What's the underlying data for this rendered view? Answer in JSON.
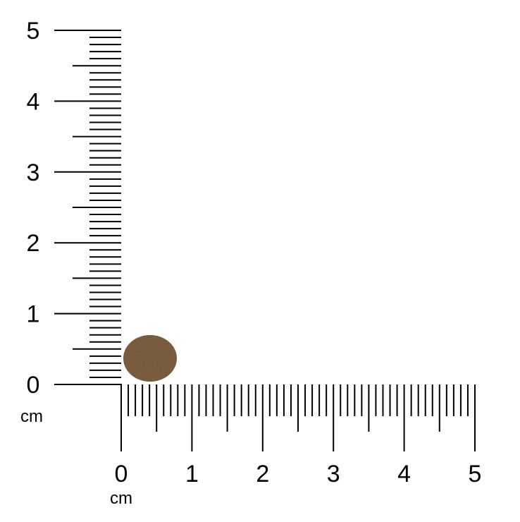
{
  "rulers": {
    "unit": "cm",
    "vertical": {
      "labels": [
        "0",
        "1",
        "2",
        "3",
        "4",
        "5"
      ],
      "unit_label": "cm",
      "range_cm": [
        0,
        5
      ],
      "minor_step_mm": 1
    },
    "horizontal": {
      "labels": [
        "0",
        "1",
        "2",
        "3",
        "4",
        "5"
      ],
      "unit_label": "cm",
      "range_cm": [
        0,
        5
      ],
      "minor_step_mm": 1
    }
  },
  "object": {
    "name": "kibble",
    "color": "#6e4d30",
    "approx_size_cm": [
      0.75,
      0.65
    ]
  },
  "colors": {
    "ruler": "#000000",
    "background": "#ffffff"
  }
}
